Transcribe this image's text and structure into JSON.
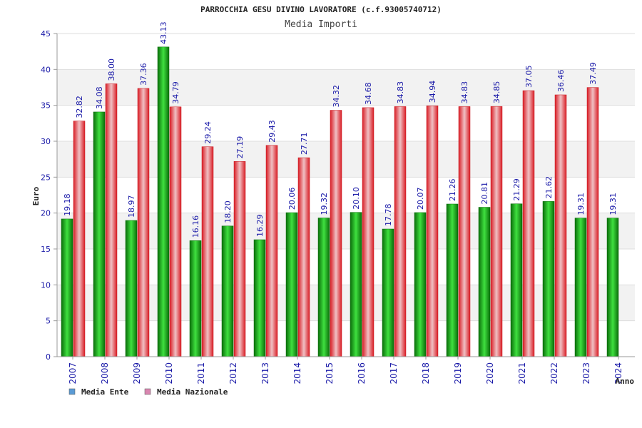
{
  "chart_data": {
    "type": "bar",
    "title": "PARROCCHIA GESU DIVINO LAVORATORE (c.f.93005740712)",
    "subtitle": "Media Importi",
    "xlabel": "Anno",
    "ylabel": "Euro",
    "ylim": [
      0,
      45
    ],
    "yticks": [
      0,
      5,
      10,
      15,
      20,
      25,
      30,
      35,
      40,
      45
    ],
    "grid": true,
    "legend_position": "bottom-left",
    "categories": [
      "2007",
      "2008",
      "2009",
      "2010",
      "2011",
      "2012",
      "2013",
      "2014",
      "2015",
      "2016",
      "2017",
      "2018",
      "2019",
      "2020",
      "2021",
      "2022",
      "2023",
      "2024"
    ],
    "series": [
      {
        "name": "Media Ente",
        "legend_color": "#5b9bd5",
        "bar_color": "#1aa01a",
        "values": [
          19.18,
          34.08,
          18.97,
          43.13,
          16.16,
          18.2,
          16.29,
          20.06,
          19.32,
          20.1,
          17.78,
          20.07,
          21.26,
          20.81,
          21.29,
          21.62,
          19.31,
          19.31
        ]
      },
      {
        "name": "Media Nazionale",
        "legend_color": "#d986b0",
        "bar_color": "#e8363c",
        "values": [
          32.82,
          38.0,
          37.36,
          34.79,
          29.24,
          27.19,
          29.43,
          27.71,
          34.32,
          34.68,
          34.83,
          34.94,
          34.83,
          34.85,
          37.05,
          36.46,
          37.49,
          null
        ]
      }
    ]
  }
}
